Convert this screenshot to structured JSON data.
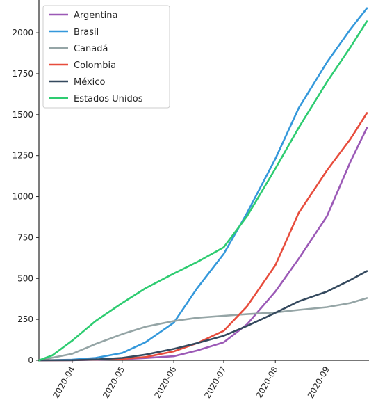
{
  "chart_data": {
    "type": "line",
    "title": "",
    "xlabel": "",
    "ylabel": "",
    "xlim": [
      "2020-03-12",
      "2020-09-25"
    ],
    "ylim": [
      0,
      2200
    ],
    "x_ticks": [
      "2020-04-01",
      "2020-05-01",
      "2020-06-01",
      "2020-07-01",
      "2020-08-01",
      "2020-09-01"
    ],
    "x_tick_labels": [
      "2020-04",
      "2020-05",
      "2020-06",
      "2020-07",
      "2020-08",
      "2020-09"
    ],
    "y_ticks": [
      0,
      250,
      500,
      750,
      1000,
      1250,
      1500,
      1750,
      2000
    ],
    "y_tick_labels": [
      "0",
      "250",
      "500",
      "750",
      "1000",
      "1250",
      "1500",
      "1750",
      "2000"
    ],
    "grid": false,
    "legend": "top-left",
    "series": [
      {
        "name": "Argentina",
        "color": "#9b59b6",
        "points": [
          [
            "2020-03-12",
            0
          ],
          [
            "2020-04-01",
            1
          ],
          [
            "2020-05-01",
            7
          ],
          [
            "2020-05-15",
            14
          ],
          [
            "2020-06-01",
            25
          ],
          [
            "2020-06-15",
            60
          ],
          [
            "2020-07-01",
            110
          ],
          [
            "2020-07-15",
            220
          ],
          [
            "2020-08-01",
            420
          ],
          [
            "2020-08-15",
            620
          ],
          [
            "2020-09-01",
            880
          ],
          [
            "2020-09-15",
            1210
          ],
          [
            "2020-09-25",
            1420
          ]
        ]
      },
      {
        "name": "Brasil",
        "color": "#3498db",
        "points": [
          [
            "2020-03-12",
            0
          ],
          [
            "2020-04-01",
            4
          ],
          [
            "2020-04-15",
            15
          ],
          [
            "2020-05-01",
            45
          ],
          [
            "2020-05-15",
            110
          ],
          [
            "2020-06-01",
            230
          ],
          [
            "2020-06-15",
            440
          ],
          [
            "2020-07-01",
            650
          ],
          [
            "2020-07-15",
            900
          ],
          [
            "2020-08-01",
            1230
          ],
          [
            "2020-08-15",
            1540
          ],
          [
            "2020-09-01",
            1820
          ],
          [
            "2020-09-15",
            2020
          ],
          [
            "2020-09-25",
            2150
          ]
        ]
      },
      {
        "name": "Canadá",
        "color": "#95a5a6",
        "points": [
          [
            "2020-03-12",
            0
          ],
          [
            "2020-04-01",
            40
          ],
          [
            "2020-04-15",
            100
          ],
          [
            "2020-05-01",
            160
          ],
          [
            "2020-05-15",
            205
          ],
          [
            "2020-06-01",
            240
          ],
          [
            "2020-06-15",
            260
          ],
          [
            "2020-07-01",
            272
          ],
          [
            "2020-07-15",
            282
          ],
          [
            "2020-08-01",
            292
          ],
          [
            "2020-08-15",
            308
          ],
          [
            "2020-09-01",
            325
          ],
          [
            "2020-09-15",
            350
          ],
          [
            "2020-09-25",
            380
          ]
        ]
      },
      {
        "name": "Colombia",
        "color": "#e74c3c",
        "points": [
          [
            "2020-03-12",
            0
          ],
          [
            "2020-04-01",
            1
          ],
          [
            "2020-05-01",
            9
          ],
          [
            "2020-05-15",
            20
          ],
          [
            "2020-06-01",
            55
          ],
          [
            "2020-06-15",
            105
          ],
          [
            "2020-07-01",
            180
          ],
          [
            "2020-07-15",
            330
          ],
          [
            "2020-08-01",
            580
          ],
          [
            "2020-08-15",
            900
          ],
          [
            "2020-09-01",
            1160
          ],
          [
            "2020-09-15",
            1350
          ],
          [
            "2020-09-25",
            1510
          ]
        ]
      },
      {
        "name": "México",
        "color": "#34495e",
        "points": [
          [
            "2020-03-12",
            0
          ],
          [
            "2020-04-01",
            1
          ],
          [
            "2020-04-15",
            5
          ],
          [
            "2020-05-01",
            15
          ],
          [
            "2020-05-15",
            35
          ],
          [
            "2020-06-01",
            70
          ],
          [
            "2020-06-15",
            105
          ],
          [
            "2020-07-01",
            150
          ],
          [
            "2020-07-15",
            210
          ],
          [
            "2020-08-01",
            290
          ],
          [
            "2020-08-15",
            360
          ],
          [
            "2020-09-01",
            420
          ],
          [
            "2020-09-15",
            490
          ],
          [
            "2020-09-25",
            545
          ]
        ]
      },
      {
        "name": "Estados Unidos",
        "color": "#2ecc71",
        "points": [
          [
            "2020-03-12",
            0
          ],
          [
            "2020-03-20",
            30
          ],
          [
            "2020-04-01",
            120
          ],
          [
            "2020-04-15",
            240
          ],
          [
            "2020-05-01",
            350
          ],
          [
            "2020-05-15",
            440
          ],
          [
            "2020-06-01",
            530
          ],
          [
            "2020-06-15",
            600
          ],
          [
            "2020-07-01",
            690
          ],
          [
            "2020-07-15",
            880
          ],
          [
            "2020-08-01",
            1170
          ],
          [
            "2020-08-15",
            1420
          ],
          [
            "2020-09-01",
            1700
          ],
          [
            "2020-09-15",
            1910
          ],
          [
            "2020-09-25",
            2070
          ]
        ]
      }
    ]
  }
}
